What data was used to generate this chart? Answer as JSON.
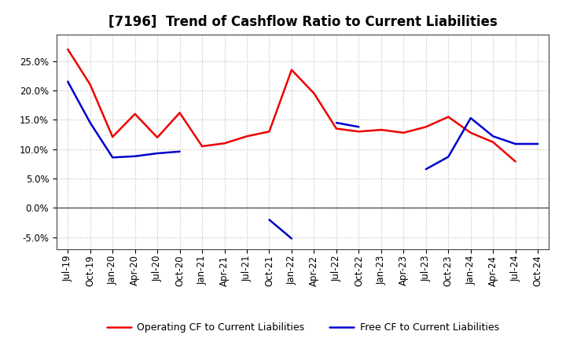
{
  "title": "[7196]  Trend of Cashflow Ratio to Current Liabilities",
  "x_labels": [
    "Jul-19",
    "Oct-19",
    "Jan-20",
    "Apr-20",
    "Jul-20",
    "Oct-20",
    "Jan-21",
    "Apr-21",
    "Jul-21",
    "Oct-21",
    "Jan-22",
    "Apr-22",
    "Jul-22",
    "Oct-22",
    "Jan-23",
    "Apr-23",
    "Jul-23",
    "Oct-23",
    "Jan-24",
    "Apr-24",
    "Jul-24",
    "Oct-24"
  ],
  "operating_cf": [
    0.27,
    0.21,
    0.121,
    0.16,
    0.12,
    0.162,
    0.105,
    0.11,
    0.122,
    0.13,
    0.235,
    0.195,
    0.135,
    0.13,
    0.133,
    0.128,
    0.138,
    0.155,
    0.128,
    0.112,
    0.079,
    null
  ],
  "free_cf": [
    0.215,
    0.145,
    0.086,
    0.088,
    0.093,
    0.096,
    null,
    null,
    null,
    -0.02,
    -0.052,
    null,
    0.145,
    0.138,
    null,
    null,
    0.066,
    0.087,
    0.153,
    0.122,
    0.109,
    0.109
  ],
  "ylim": [
    -0.07,
    0.295
  ],
  "yticks": [
    -0.05,
    0.0,
    0.05,
    0.1,
    0.15,
    0.2,
    0.25
  ],
  "operating_color": "#EE0000",
  "free_color": "#0000CC",
  "background_color": "#FFFFFF",
  "grid_color": "#BBBBBB",
  "legend_operating": "Operating CF to Current Liabilities",
  "legend_free": "Free CF to Current Liabilities",
  "title_fontsize": 12,
  "tick_fontsize": 8.5,
  "linewidth": 1.8
}
